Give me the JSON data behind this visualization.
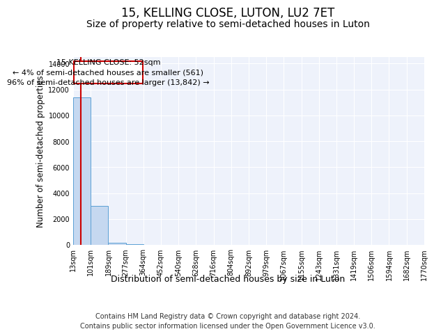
{
  "title": "15, KELLING CLOSE, LUTON, LU2 7ET",
  "subtitle": "Size of property relative to semi-detached houses in Luton",
  "xlabel": "Distribution of semi-detached houses by size in Luton",
  "ylabel": "Number of semi-detached properties",
  "bin_edges": [
    13,
    101,
    189,
    277,
    364,
    452,
    540,
    628,
    716,
    804,
    892,
    979,
    1067,
    1155,
    1243,
    1331,
    1419,
    1506,
    1594,
    1682,
    1770
  ],
  "bar_heights": [
    11400,
    3000,
    150,
    30,
    10,
    5,
    3,
    2,
    1,
    1,
    1,
    1,
    0,
    0,
    0,
    0,
    0,
    0,
    0,
    0
  ],
  "bar_color": "#c5d8f0",
  "bar_edge_color": "#5a9fd4",
  "property_size": 52,
  "smaller_pct": 4,
  "smaller_count": 561,
  "larger_pct": 96,
  "larger_count": 13842,
  "vline_color": "#cc0000",
  "annotation_box_color": "#cc0000",
  "ylim": [
    0,
    14500
  ],
  "yticks": [
    0,
    2000,
    4000,
    6000,
    8000,
    10000,
    12000,
    14000
  ],
  "footer_line1": "Contains HM Land Registry data © Crown copyright and database right 2024.",
  "footer_line2": "Contains public sector information licensed under the Open Government Licence v3.0.",
  "bg_color": "#eef2fb",
  "grid_color": "#ffffff",
  "title_fontsize": 12,
  "subtitle_fontsize": 10,
  "annotation_fontsize": 8,
  "ylabel_fontsize": 8.5,
  "xlabel_fontsize": 9,
  "tick_fontsize": 7,
  "footer_fontsize": 7
}
